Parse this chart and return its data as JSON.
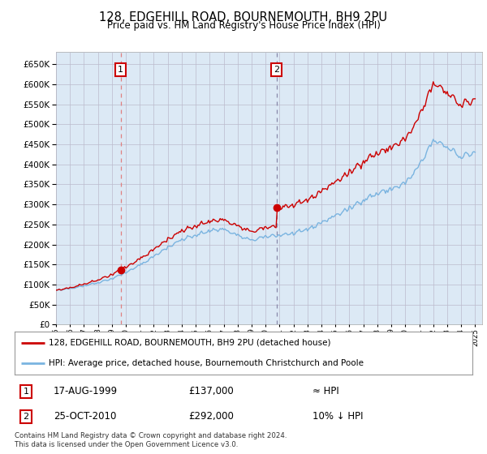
{
  "title": "128, EDGEHILL ROAD, BOURNEMOUTH, BH9 2PU",
  "subtitle": "Price paid vs. HM Land Registry's House Price Index (HPI)",
  "sale1_price": 137000,
  "sale1_label": "1",
  "sale2_price": 292000,
  "sale2_label": "2",
  "legend_line1": "128, EDGEHILL ROAD, BOURNEMOUTH, BH9 2PU (detached house)",
  "legend_line2": "HPI: Average price, detached house, Bournemouth Christchurch and Poole",
  "table_row1_num": "1",
  "table_row1_date": "17-AUG-1999",
  "table_row1_price": "£137,000",
  "table_row1_hpi": "≈ HPI",
  "table_row2_num": "2",
  "table_row2_date": "25-OCT-2010",
  "table_row2_price": "£292,000",
  "table_row2_hpi": "10% ↓ HPI",
  "footnote": "Contains HM Land Registry data © Crown copyright and database right 2024.\nThis data is licensed under the Open Government Licence v3.0.",
  "hpi_color": "#7ab4e0",
  "hpi_fill_color": "#dce9f5",
  "price_color": "#cc0000",
  "vline1_color": "#e08080",
  "vline2_color": "#8888aa",
  "background_color": "#dce9f5",
  "plot_bg": "#ffffff",
  "grid_color": "#bbbbcc",
  "ylim_max": 680000,
  "yticks": [
    0,
    50000,
    100000,
    150000,
    200000,
    250000,
    300000,
    350000,
    400000,
    450000,
    500000,
    550000,
    600000,
    650000
  ],
  "sale1_x": 1999.62,
  "sale2_x": 2010.79,
  "hpi_base_years": [
    1995,
    1996,
    1997,
    1998,
    1999,
    2000,
    2001,
    2002,
    2003,
    2004,
    2005,
    2006,
    2007,
    2008,
    2009,
    2010,
    2011,
    2012,
    2013,
    2014,
    2015,
    2016,
    2017,
    2018,
    2019,
    2020,
    2021,
    2022,
    2023,
    2024,
    2025
  ],
  "hpi_base_values": [
    85000,
    90000,
    97000,
    105000,
    115000,
    130000,
    148000,
    170000,
    193000,
    213000,
    223000,
    235000,
    238000,
    222000,
    210000,
    220000,
    224000,
    228000,
    237000,
    254000,
    272000,
    290000,
    312000,
    328000,
    338000,
    352000,
    395000,
    460000,
    445000,
    420000,
    430000
  ],
  "xlim_left": 1995.0,
  "xlim_right": 2025.5
}
